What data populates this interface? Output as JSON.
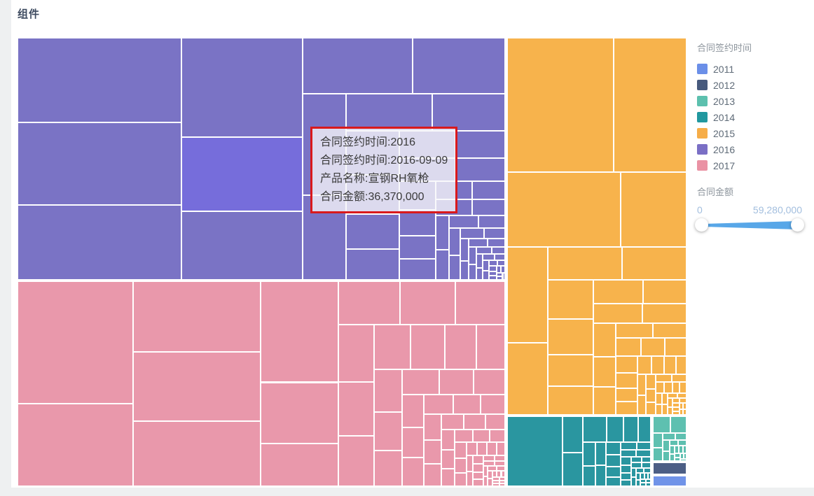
{
  "page": {
    "title": "组件"
  },
  "legend": {
    "title": "合同签约时间",
    "items": [
      {
        "label": "2011",
        "color": "#6b8fe8"
      },
      {
        "label": "2012",
        "color": "#475a7d"
      },
      {
        "label": "2013",
        "color": "#5cc0ae"
      },
      {
        "label": "2014",
        "color": "#21989f"
      },
      {
        "label": "2015",
        "color": "#f6ad48"
      },
      {
        "label": "2016",
        "color": "#7a6fc5"
      },
      {
        "label": "2017",
        "color": "#ea92a4"
      }
    ]
  },
  "slider": {
    "title": "合同金额",
    "min_label": "0",
    "max_label": "59,280,000",
    "track_color": "#58a7e8",
    "label_color": "#a2bede"
  },
  "tooltip": {
    "lines": [
      "合同签约时间:2016",
      "合同签约时间:2016-09-09",
      "产品名称:宣钢RH氧枪",
      "合同金额:36,370,000"
    ],
    "border_color": "#d9191c"
  },
  "chart_data": {
    "type": "treemap",
    "title": "组件",
    "group_field": "合同签约时间",
    "value_field": "合同金额",
    "value_range": [
      0,
      59280000
    ],
    "value_unit": "millions (leaf values estimated from tile areas; 36.37M is the hovered tile shown in tooltip)",
    "legend_position": "right",
    "sort": "desc",
    "algorithm": "squarified",
    "gap_color": "#ffffff",
    "highlight": {
      "group": "2016",
      "value": 36.37,
      "color": "#766ddb",
      "product": "宣钢RH氧枪",
      "date": "2016-09-09"
    },
    "groups": [
      {
        "name": "2016",
        "color": "#7a73c5",
        "box_pct": [
          0,
          0,
          72.9,
          54.05
        ],
        "values": [
          56,
          55,
          50,
          49,
          36.37,
          34,
          25,
          21,
          18,
          15,
          13,
          11,
          9.5,
          8.5,
          7.5,
          6.8,
          6.2,
          5.6,
          5.1,
          4.6,
          4.2,
          3.8,
          3.4,
          3.1,
          2.8,
          2.5,
          2.3,
          2.1,
          1.9,
          1.7,
          1.5,
          1.4,
          1.2,
          1.1,
          1.0,
          0.9,
          0.8,
          0.7,
          0.65,
          0.6,
          0.55,
          0.5,
          0.45,
          0.4,
          0.36,
          0.33,
          0.3,
          0.27,
          0.25,
          0.22,
          0.2,
          0.18,
          0.16,
          0.15,
          0.13,
          0.12,
          0.11,
          0.1,
          0.09,
          0.08
        ]
      },
      {
        "name": "2017",
        "color": "#e998ab",
        "box_pct": [
          0,
          54.35,
          72.9,
          45.65
        ],
        "values": [
          59.28,
          40,
          38,
          37,
          35,
          33,
          20,
          14,
          11,
          10,
          9,
          8.5,
          8,
          7.5,
          7,
          6.5,
          6,
          5.5,
          5,
          4.6,
          4.2,
          3.9,
          3.6,
          3.3,
          3.0,
          2.8,
          2.6,
          2.4,
          2.2,
          2.0,
          1.9,
          1.75,
          1.6,
          1.5,
          1.4,
          1.3,
          1.2,
          1.1,
          1.0,
          0.95,
          0.88,
          0.82,
          0.76,
          0.7,
          0.65,
          0.6,
          0.56,
          0.52,
          0.48,
          0.44,
          0.41,
          0.38,
          0.35,
          0.32,
          0.3,
          0.28,
          0.26,
          0.24,
          0.22,
          0.2,
          0.19,
          0.17,
          0.16,
          0.15,
          0.14,
          0.13,
          0.12,
          0.11,
          0.1,
          0.09,
          0.085,
          0.08,
          0.075,
          0.07
        ]
      },
      {
        "name": "2015",
        "color": "#f7b34c",
        "box_pct": [
          73.15,
          0,
          26.85,
          84.1
        ],
        "values": [
          44,
          30,
          26,
          15,
          12,
          9,
          7.5,
          6.5,
          5.5,
          5,
          4.5,
          4,
          3.6,
          3.2,
          2.9,
          2.6,
          2.3,
          2.1,
          1.9,
          1.7,
          1.55,
          1.4,
          1.3,
          1.2,
          1.1,
          1.0,
          0.9,
          0.85,
          0.78,
          0.72,
          0.66,
          0.6,
          0.55,
          0.5,
          0.46,
          0.42,
          0.39,
          0.36,
          0.33,
          0.3,
          0.28,
          0.26,
          0.24,
          0.22,
          0.2,
          0.18,
          0.17,
          0.155,
          0.14,
          0.13,
          0.12,
          0.11,
          0.1,
          0.09,
          0.085,
          0.078,
          0.072,
          0.066,
          0.06,
          0.055
        ]
      },
      {
        "name": "2014",
        "color": "#2a96a0",
        "box_pct": [
          73.15,
          84.45,
          21.55,
          15.55
        ],
        "values": [
          14,
          2.6,
          2.4,
          2.2,
          1.5,
          1.35,
          1.2,
          1.1,
          0.95,
          0.85,
          0.75,
          0.68,
          0.62,
          0.56,
          0.5,
          0.46,
          0.42,
          0.38,
          0.35,
          0.32,
          0.29,
          0.27,
          0.25,
          0.23,
          0.21,
          0.19,
          0.175,
          0.16,
          0.15,
          0.135,
          0.125,
          0.115,
          0.105,
          0.095,
          0.088,
          0.08,
          0.074,
          0.068,
          0.062,
          0.057
        ]
      },
      {
        "name": "2013",
        "color": "#5ec0b0",
        "box_pct": [
          94.95,
          84.45,
          5.05,
          10.0
        ],
        "values": [
          1.5,
          1.4,
          0.8,
          0.75,
          0.45,
          0.42,
          0.38,
          0.35,
          0.28,
          0.25,
          0.22,
          0.2,
          0.18,
          0.16,
          0.14,
          0.13,
          0.115,
          0.105,
          0.095,
          0.085
        ]
      },
      {
        "name": "2012",
        "color": "#4c5e85",
        "box_pct": [
          94.95,
          94.65,
          5.05,
          2.75
        ],
        "values": [
          1.85
        ]
      },
      {
        "name": "2011",
        "color": "#7093e8",
        "box_pct": [
          94.95,
          97.6,
          5.05,
          2.4
        ],
        "values": [
          1.5
        ]
      }
    ]
  }
}
